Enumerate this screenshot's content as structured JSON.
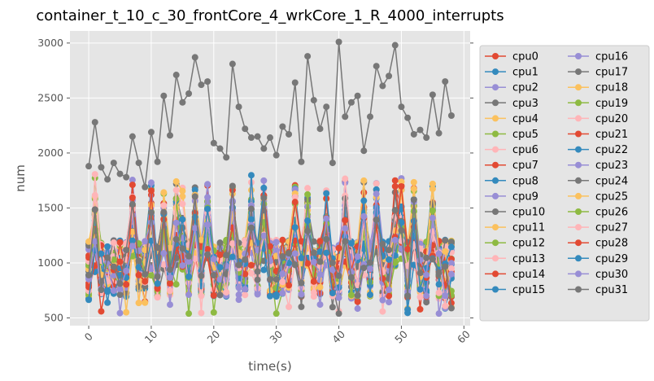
{
  "chart_data": {
    "type": "line",
    "title": "container_t_10_c_30_frontCore_4_wrkCore_1_R_4000_interrupts",
    "xlabel": "time(s)",
    "ylabel": "num",
    "xlim": [
      -3,
      61
    ],
    "ylim": [
      430,
      3110
    ],
    "x_ticks": [
      0,
      10,
      20,
      30,
      40,
      50,
      60
    ],
    "y_ticks": [
      500,
      1000,
      1500,
      2000,
      2500,
      3000
    ],
    "grid": true,
    "legend_position": "outside-right",
    "x": [
      0,
      1,
      2,
      3,
      4,
      5,
      6,
      7,
      8,
      9,
      10,
      11,
      12,
      13,
      14,
      15,
      16,
      17,
      18,
      19,
      20,
      21,
      22,
      23,
      24,
      25,
      26,
      27,
      28,
      29,
      30,
      31,
      32,
      33,
      34,
      35,
      36,
      37,
      38,
      39,
      40,
      41,
      42,
      43,
      44,
      45,
      46,
      47,
      48,
      49,
      50,
      51,
      52,
      53,
      54,
      55,
      56,
      57,
      58
    ],
    "spike_times": [
      1,
      7,
      10,
      12,
      14,
      15,
      17,
      19,
      23,
      26,
      28,
      33,
      35,
      38,
      41,
      44,
      46,
      49,
      50,
      52,
      55
    ],
    "series_names": [
      "cpu0",
      "cpu1",
      "cpu2",
      "cpu3",
      "cpu4",
      "cpu5",
      "cpu6",
      "cpu7",
      "cpu8",
      "cpu9",
      "cpu10",
      "cpu11",
      "cpu12",
      "cpu13",
      "cpu14",
      "cpu15",
      "cpu16",
      "cpu17",
      "cpu18",
      "cpu19",
      "cpu20",
      "cpu21",
      "cpu22",
      "cpu23",
      "cpu24",
      "cpu25",
      "cpu26",
      "cpu27",
      "cpu28",
      "cpu29",
      "cpu30",
      "cpu31"
    ],
    "series_colors": [
      "#E24A33",
      "#348ABD",
      "#988ED5",
      "#777777",
      "#FBC15E",
      "#8EBA42",
      "#FFB5B8",
      "#E24A33",
      "#348ABD",
      "#988ED5",
      "#777777",
      "#FBC15E",
      "#8EBA42",
      "#FFB5B8",
      "#E24A33",
      "#348ABD",
      "#988ED5",
      "#777777",
      "#FBC15E",
      "#8EBA42",
      "#FFB5B8",
      "#E24A33",
      "#348ABD",
      "#988ED5",
      "#777777",
      "#FBC15E",
      "#8EBA42",
      "#FFB5B8",
      "#E24A33",
      "#348ABD",
      "#988ED5",
      "#777777"
    ],
    "highlighted_series": {
      "name": "cpu17",
      "color": "#777777",
      "values": [
        1880,
        2280,
        1870,
        1760,
        1910,
        1810,
        1780,
        2150,
        1910,
        1690,
        2190,
        1920,
        2520,
        2160,
        2710,
        2460,
        2540,
        2870,
        2620,
        2650,
        2090,
        2040,
        1960,
        2810,
        2420,
        2220,
        2140,
        2150,
        2040,
        2140,
        1980,
        2240,
        2170,
        2640,
        1920,
        2880,
        2480,
        2220,
        2420,
        1910,
        3010,
        2330,
        2460,
        2520,
        2020,
        2330,
        2790,
        2610,
        2700,
        2980,
        2420,
        2320,
        2170,
        2210,
        2140,
        2530,
        2180,
        2650,
        2340
      ]
    }
  }
}
